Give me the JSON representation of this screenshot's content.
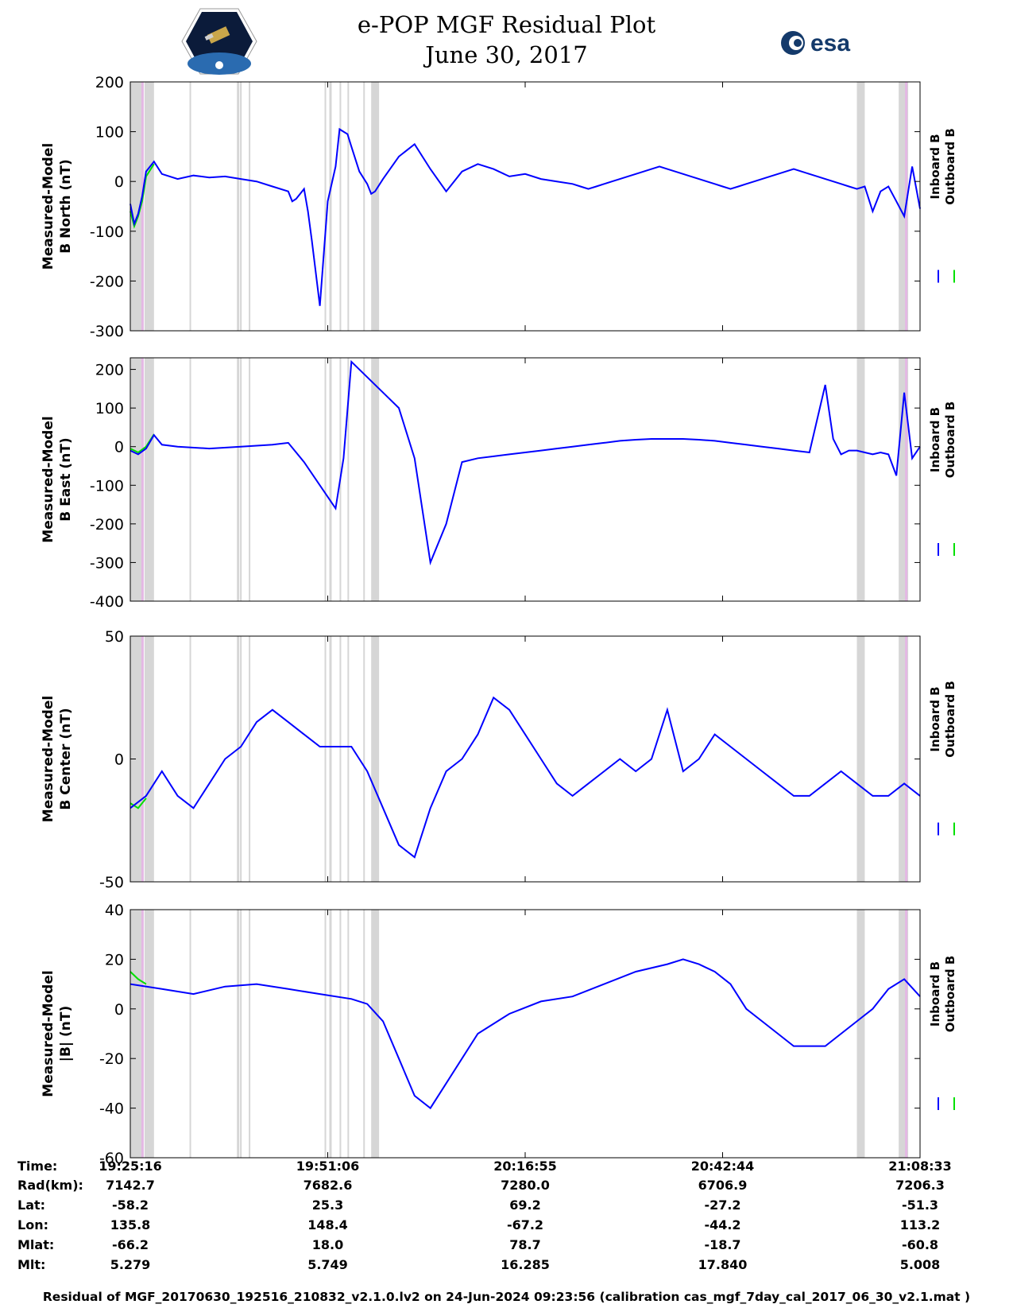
{
  "title": "e-POP MGF Residual Plot",
  "date": "June 30, 2017",
  "footer": "Residual of MGF_20170630_192516_210832_v2.1.0.lv2 on 24-Jun-2024 09:23:56 (calibration cas_mgf_7day_cal_2017_06_30_v2.1.mat )",
  "logos": {
    "left": "cassiope-mission-logo",
    "right_text": "esa"
  },
  "colors": {
    "inboard": "#0000ff",
    "outboard": "#00e000",
    "shade": "#d6d6d6",
    "shade_pink": "#e4b8e4"
  },
  "chart_data": [
    {
      "type": "line",
      "ylabel": [
        "Measured-Model",
        "B North (nT)"
      ],
      "ylim": [
        -300,
        200
      ],
      "yticks": [
        200,
        100,
        0,
        -100,
        -200,
        -300
      ],
      "legend": [
        "Inboard B",
        "Outboard B"
      ],
      "series": [
        {
          "name": "Inboard B",
          "x": [
            0,
            0.5,
            1,
            1.5,
            2,
            3,
            4,
            6,
            8,
            10,
            12,
            14,
            16,
            18,
            20,
            20.5,
            21,
            22,
            22.5,
            23,
            24,
            25,
            26,
            26.5,
            27,
            27.5,
            28,
            29,
            30,
            30.5,
            31,
            32,
            34,
            36,
            38,
            40,
            42,
            44,
            46,
            48,
            50,
            52,
            54,
            56,
            57,
            58,
            59,
            60,
            61,
            62,
            63,
            64,
            65,
            66,
            67,
            68,
            69,
            70,
            71,
            72,
            73,
            74,
            75,
            76,
            77,
            78,
            79,
            80,
            81,
            82,
            83,
            84,
            85,
            86,
            87,
            88,
            89,
            90,
            91,
            92,
            93,
            94,
            95,
            96,
            97,
            98,
            99,
            100
          ],
          "y": [
            -45,
            -85,
            -65,
            -30,
            20,
            40,
            15,
            5,
            12,
            8,
            10,
            5,
            0,
            -10,
            -20,
            -40,
            -35,
            -15,
            -60,
            -120,
            -250,
            -40,
            30,
            105,
            100,
            95,
            70,
            20,
            -5,
            -25,
            -20,
            5,
            50,
            75,
            25,
            -20,
            20,
            35,
            25,
            10,
            15,
            5,
            0,
            -5,
            -10,
            -15,
            -10,
            -5,
            0,
            5,
            10,
            15,
            20,
            25,
            30,
            25,
            20,
            15,
            10,
            5,
            0,
            -5,
            -10,
            -15,
            -10,
            -5,
            0,
            5,
            10,
            15,
            20,
            25,
            20,
            15,
            10,
            5,
            0,
            -5,
            -10,
            -15,
            -10,
            -60,
            -20,
            -10,
            -40,
            -70,
            30,
            -55
          ]
        },
        {
          "name": "Outboard B",
          "x": [
            0,
            0.5,
            1,
            1.5,
            2,
            3
          ],
          "y": [
            -60,
            -90,
            -70,
            -40,
            10,
            35
          ]
        }
      ]
    },
    {
      "type": "line",
      "ylabel": [
        "Measured-Model",
        "B East (nT)"
      ],
      "ylim": [
        -400,
        230
      ],
      "yticks": [
        200,
        100,
        0,
        -100,
        -200,
        -300,
        -400
      ],
      "legend": [
        "Inboard B",
        "Outboard B"
      ],
      "series": [
        {
          "name": "Inboard B",
          "x": [
            0,
            1,
            2,
            3,
            4,
            6,
            10,
            14,
            18,
            20,
            22,
            24,
            26,
            27,
            28,
            30,
            32,
            34,
            36,
            38,
            40,
            42,
            44,
            46,
            48,
            50,
            52,
            54,
            56,
            58,
            60,
            62,
            64,
            66,
            68,
            70,
            72,
            74,
            76,
            78,
            80,
            82,
            84,
            86,
            88,
            89,
            90,
            91,
            92,
            93,
            94,
            95,
            96,
            97,
            98,
            99,
            100
          ],
          "y": [
            -10,
            -20,
            -5,
            30,
            5,
            0,
            -5,
            0,
            5,
            10,
            -40,
            -100,
            -160,
            -30,
            220,
            180,
            140,
            100,
            -30,
            -300,
            -200,
            -40,
            -30,
            -25,
            -20,
            -15,
            -10,
            -5,
            0,
            5,
            10,
            15,
            18,
            20,
            20,
            20,
            18,
            15,
            10,
            5,
            0,
            -5,
            -10,
            -15,
            160,
            20,
            -20,
            -10,
            -10,
            -15,
            -20,
            -15,
            -20,
            -75,
            140,
            -30,
            0
          ]
        },
        {
          "name": "Outboard B",
          "x": [
            0,
            1,
            2,
            3
          ],
          "y": [
            -5,
            -15,
            0,
            32
          ]
        }
      ]
    },
    {
      "type": "line",
      "ylabel": [
        "Measured-Model",
        "B Center (nT)"
      ],
      "ylim": [
        -50,
        50
      ],
      "yticks": [
        50,
        0,
        -50
      ],
      "legend": [
        "Inboard B",
        "Outboard B"
      ],
      "series": [
        {
          "name": "Inboard B",
          "x": [
            0,
            2,
            4,
            6,
            8,
            10,
            12,
            14,
            16,
            18,
            20,
            22,
            24,
            26,
            28,
            30,
            32,
            34,
            36,
            38,
            40,
            42,
            44,
            46,
            48,
            50,
            52,
            54,
            56,
            58,
            60,
            62,
            64,
            66,
            68,
            70,
            72,
            74,
            76,
            78,
            80,
            82,
            84,
            86,
            88,
            90,
            92,
            94,
            96,
            98,
            100
          ],
          "y": [
            -20,
            -15,
            -5,
            -15,
            -20,
            -10,
            0,
            5,
            15,
            20,
            15,
            10,
            5,
            5,
            5,
            -5,
            -20,
            -35,
            -40,
            -20,
            -5,
            0,
            10,
            25,
            20,
            10,
            0,
            -10,
            -15,
            -10,
            -5,
            0,
            -5,
            0,
            20,
            -5,
            0,
            10,
            5,
            0,
            -5,
            -10,
            -15,
            -15,
            -10,
            -5,
            -10,
            -15,
            -15,
            -10,
            -15
          ]
        },
        {
          "name": "Outboard B",
          "x": [
            0,
            1,
            2
          ],
          "y": [
            -18,
            -20,
            -16
          ]
        }
      ]
    },
    {
      "type": "line",
      "ylabel": [
        "Measured-Model",
        "|B| (nT)"
      ],
      "ylim": [
        -60,
        40
      ],
      "yticks": [
        40,
        20,
        0,
        -20,
        -40,
        -60
      ],
      "legend": [
        "Inboard B",
        "Outboard B"
      ],
      "series": [
        {
          "name": "Inboard B",
          "x": [
            0,
            4,
            8,
            12,
            16,
            20,
            24,
            28,
            30,
            32,
            34,
            36,
            38,
            40,
            44,
            48,
            52,
            56,
            60,
            64,
            68,
            70,
            72,
            74,
            76,
            78,
            80,
            82,
            84,
            86,
            88,
            90,
            92,
            94,
            96,
            98,
            100
          ],
          "y": [
            10,
            8,
            6,
            9,
            10,
            8,
            6,
            4,
            2,
            -5,
            -20,
            -35,
            -40,
            -30,
            -10,
            -2,
            3,
            5,
            10,
            15,
            18,
            20,
            18,
            15,
            10,
            0,
            -5,
            -10,
            -15,
            -15,
            -15,
            -10,
            -5,
            0,
            8,
            12,
            5
          ]
        },
        {
          "name": "Outboard B",
          "x": [
            0,
            1,
            2
          ],
          "y": [
            15,
            12,
            10
          ]
        }
      ]
    }
  ],
  "shade_bands_pct": [
    [
      0,
      1.5
    ],
    [
      1.8,
      3
    ],
    [
      7.5,
      7.7
    ],
    [
      13.5,
      13.8
    ],
    [
      13.9,
      14.1
    ],
    [
      15.0,
      15.2
    ],
    [
      24.6,
      24.8
    ],
    [
      25.2,
      25.5
    ],
    [
      26.5,
      26.7
    ],
    [
      27.5,
      27.7
    ],
    [
      29.5,
      29.7
    ],
    [
      30.5,
      31.5
    ],
    [
      92.0,
      93.0
    ],
    [
      97.3,
      98.5
    ]
  ],
  "pink_bands_pct": [
    [
      1.4,
      1.7
    ],
    [
      98.1,
      98.4
    ]
  ],
  "xticks_pct": [
    0,
    25,
    50,
    75,
    100
  ],
  "table": {
    "row_labels": [
      "Time:",
      "Rad(km):",
      "Lat:",
      "Lon:",
      "Mlat:",
      "Mlt:"
    ],
    "columns": [
      [
        "19:25:16",
        "7142.7",
        "-58.2",
        "135.8",
        "-66.2",
        "5.279"
      ],
      [
        "19:51:06",
        "7682.6",
        "25.3",
        "148.4",
        "18.0",
        "5.749"
      ],
      [
        "20:16:55",
        "7280.0",
        "69.2",
        "-67.2",
        "78.7",
        "16.285"
      ],
      [
        "20:42:44",
        "6706.9",
        "-27.2",
        "-44.2",
        "-18.7",
        "17.840"
      ],
      [
        "21:08:33",
        "7206.3",
        "-51.3",
        "113.2",
        "-60.8",
        "5.008"
      ]
    ]
  }
}
